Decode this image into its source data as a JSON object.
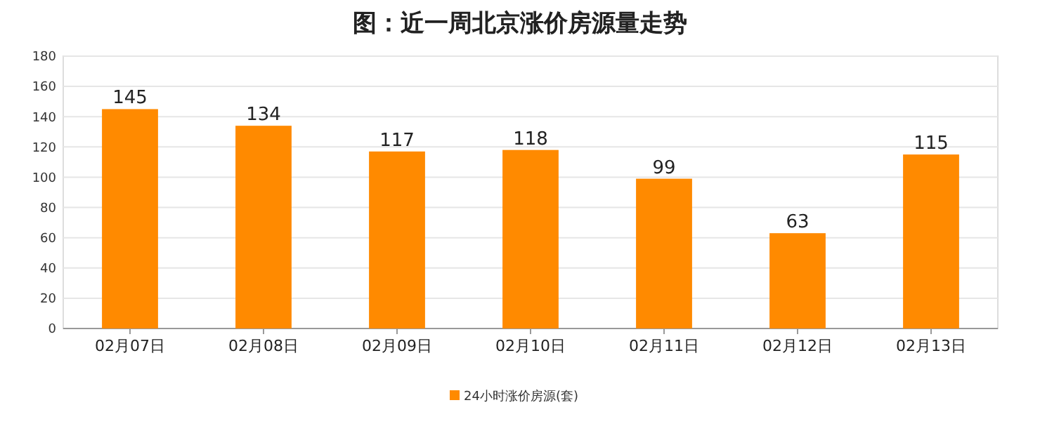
{
  "chart_data": {
    "type": "bar",
    "title": "图：近一周北京涨价房源量走势",
    "categories": [
      "02月07日",
      "02月08日",
      "02月09日",
      "02月10日",
      "02月11日",
      "02月12日",
      "02月13日"
    ],
    "series": [
      {
        "name": "24小时涨价房源(套)",
        "color": "#ff8a00",
        "values": [
          145,
          134,
          117,
          118,
          99,
          63,
          115
        ]
      }
    ],
    "ylim": [
      0,
      180
    ],
    "yticks": [
      0,
      20,
      40,
      60,
      80,
      100,
      120,
      140,
      160,
      180
    ],
    "grid": "y",
    "legend": "bottom",
    "data_labels": true
  }
}
